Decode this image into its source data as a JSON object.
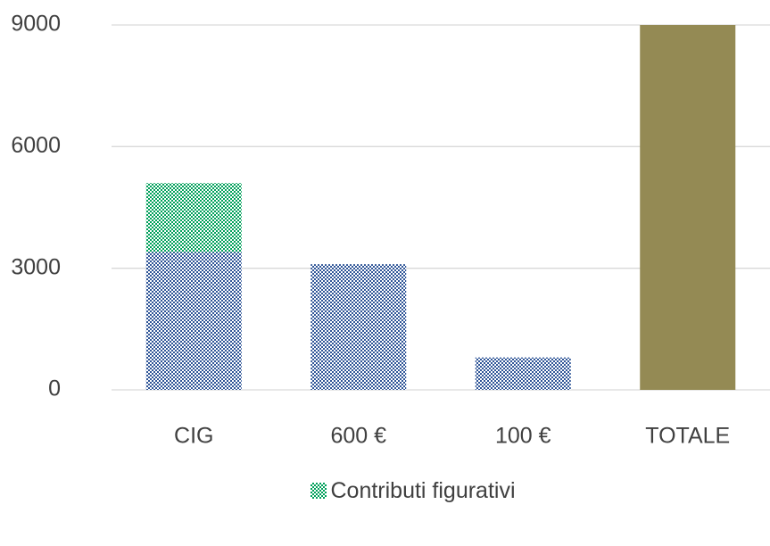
{
  "chart_data": {
    "type": "stacked_bar",
    "categories": [
      "CIG",
      "600 €",
      "100 €",
      "TOTALE"
    ],
    "series": [
      {
        "color": "#2f5597",
        "pattern": "dots",
        "values": [
          3400,
          3100,
          800,
          null
        ]
      },
      {
        "name": "Contributi figurativi",
        "color": "#00a05a",
        "pattern": "dots",
        "values": [
          1700,
          null,
          null,
          null
        ]
      },
      {
        "color": "#948a54",
        "values": [
          null,
          null,
          null,
          9000
        ]
      }
    ],
    "ylim": [
      0,
      9000
    ],
    "yticks": [
      0,
      3000,
      6000,
      9000
    ],
    "grid": true,
    "legend": "bottom"
  }
}
